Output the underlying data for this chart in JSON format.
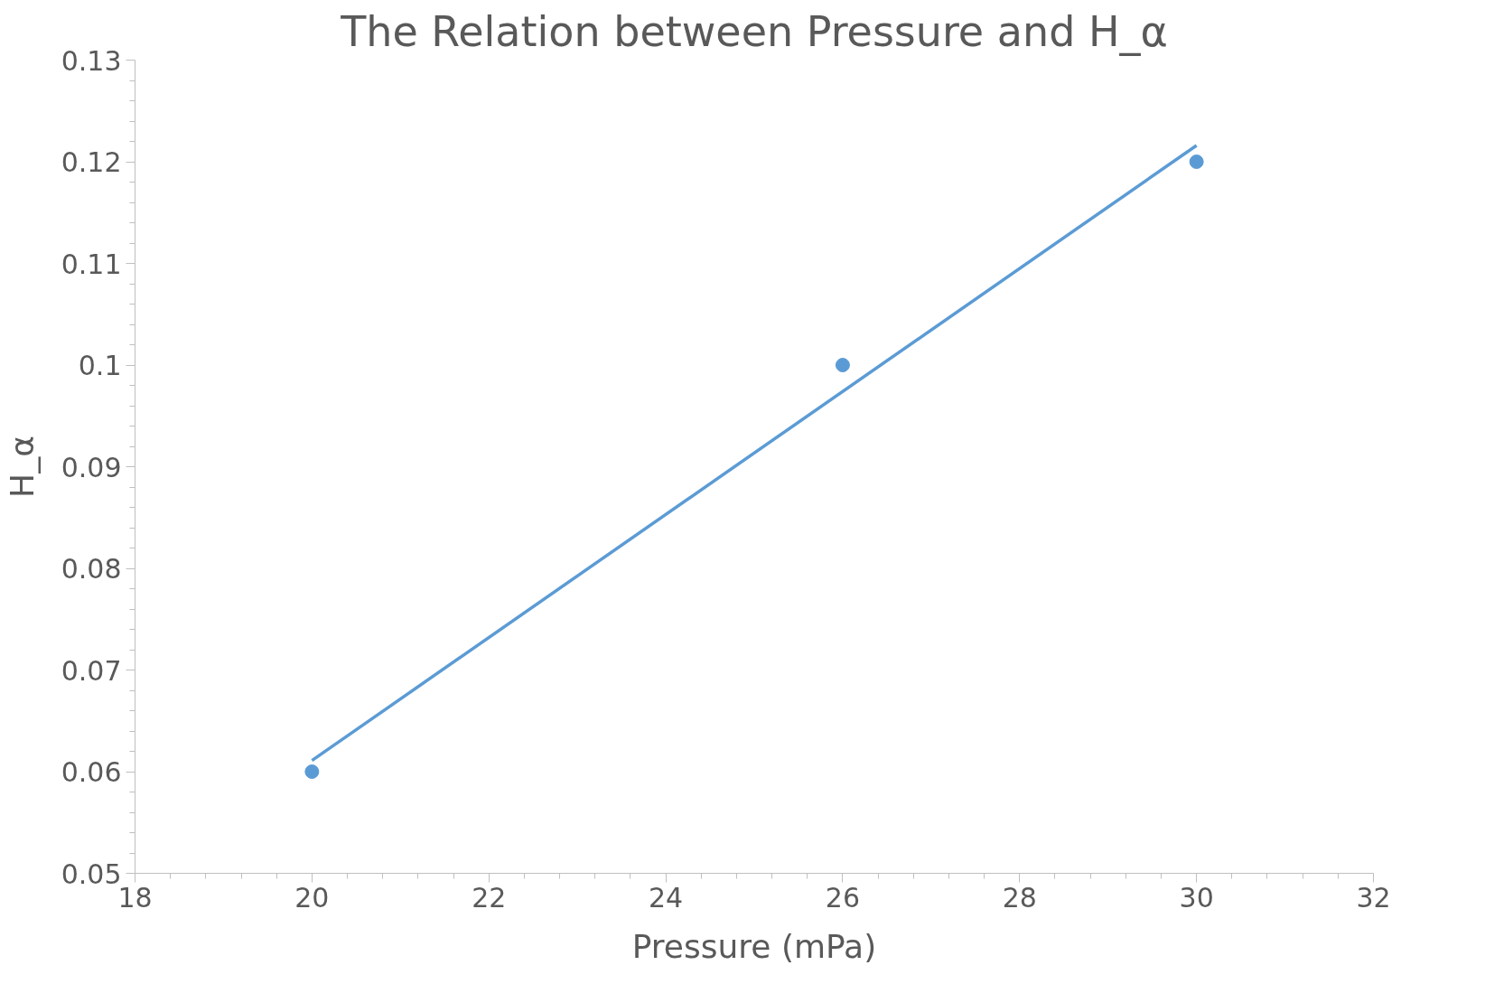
{
  "chart_data": {
    "type": "scatter",
    "title": "The Relation between Pressure and H_α",
    "xlabel": "Pressure (mPa)",
    "ylabel": "H_α",
    "x": [
      20,
      26,
      30
    ],
    "series": [
      {
        "color": "#5b9bd5",
        "values": [
          0.06,
          0.1,
          0.12
        ],
        "marker": "circle"
      },
      {
        "type": "line",
        "color": "#5b9bd5",
        "x": [
          20,
          30
        ],
        "values": [
          0.0611,
          0.1216
        ],
        "line_style": "solid"
      }
    ],
    "xlim": [
      18,
      32
    ],
    "xticks": [
      18,
      20,
      22,
      24,
      26,
      28,
      30,
      32
    ],
    "ylim": [
      0.05,
      0.13
    ],
    "yticks": [
      {
        "value": 0.05,
        "label": "0.05"
      },
      {
        "value": 0.06,
        "label": "0.06"
      },
      {
        "value": 0.07,
        "label": "0.07"
      },
      {
        "value": 0.08,
        "label": "0.08"
      },
      {
        "value": 0.09,
        "label": "0.09"
      },
      {
        "value": 0.1,
        "label": "0.1"
      },
      {
        "value": 0.11,
        "label": "0.11"
      },
      {
        "value": 0.12,
        "label": "0.12"
      },
      {
        "value": 0.13,
        "label": "0.13"
      }
    ],
    "grid": false
  }
}
